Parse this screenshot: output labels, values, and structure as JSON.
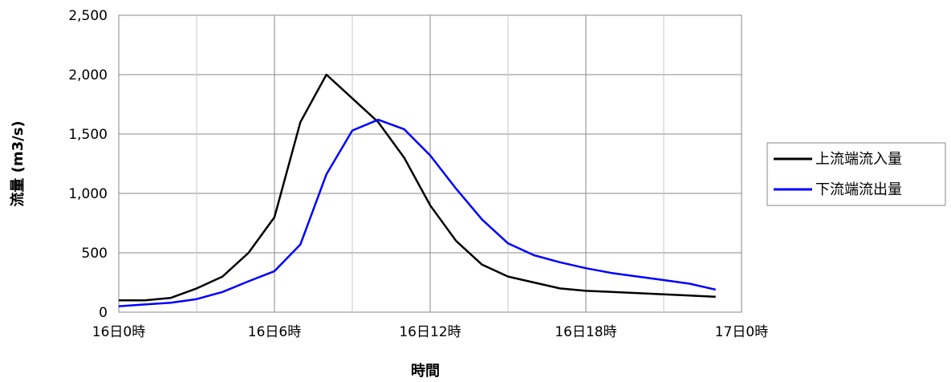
{
  "chart_data": {
    "type": "line",
    "xlabel": "時間",
    "ylabel": "流量 (m3/s)",
    "ylim": [
      0,
      2500
    ],
    "yticks": [
      0,
      500,
      1000,
      1500,
      2000,
      2500
    ],
    "ytick_labels": [
      "0",
      "500",
      "1,000",
      "1,500",
      "2,000",
      "2,500"
    ],
    "xlim": [
      0,
      24
    ],
    "xtick_values": [
      0,
      6,
      12,
      18,
      24
    ],
    "xtick_labels": [
      "16日0時",
      "16日6時",
      "16日12時",
      "16日18時",
      "17日0時"
    ],
    "x_minor_grid": [
      3,
      9,
      15,
      21
    ],
    "grid": true,
    "legend_position": "right",
    "series": [
      {
        "name": "上流端流入量",
        "color": "#000000",
        "x": [
          0,
          1,
          2,
          3,
          4,
          5,
          6,
          7,
          8,
          9,
          10,
          11,
          12,
          13,
          14,
          15,
          16,
          17,
          18,
          19,
          20,
          21,
          22,
          23
        ],
        "values": [
          100,
          100,
          120,
          200,
          300,
          500,
          800,
          1600,
          2000,
          1800,
          1600,
          1300,
          900,
          600,
          400,
          300,
          250,
          200,
          180,
          170,
          160,
          150,
          140,
          130
        ]
      },
      {
        "name": "下流端流出量",
        "color": "#0000ff",
        "x": [
          0,
          1,
          2,
          3,
          4,
          5,
          6,
          7,
          8,
          9,
          10,
          11,
          12,
          13,
          14,
          15,
          16,
          17,
          18,
          19,
          20,
          21,
          22,
          23
        ],
        "values": [
          50,
          65,
          80,
          110,
          170,
          260,
          345,
          570,
          1160,
          1530,
          1620,
          1540,
          1320,
          1040,
          780,
          580,
          480,
          420,
          370,
          330,
          300,
          270,
          240,
          190
        ]
      }
    ]
  }
}
